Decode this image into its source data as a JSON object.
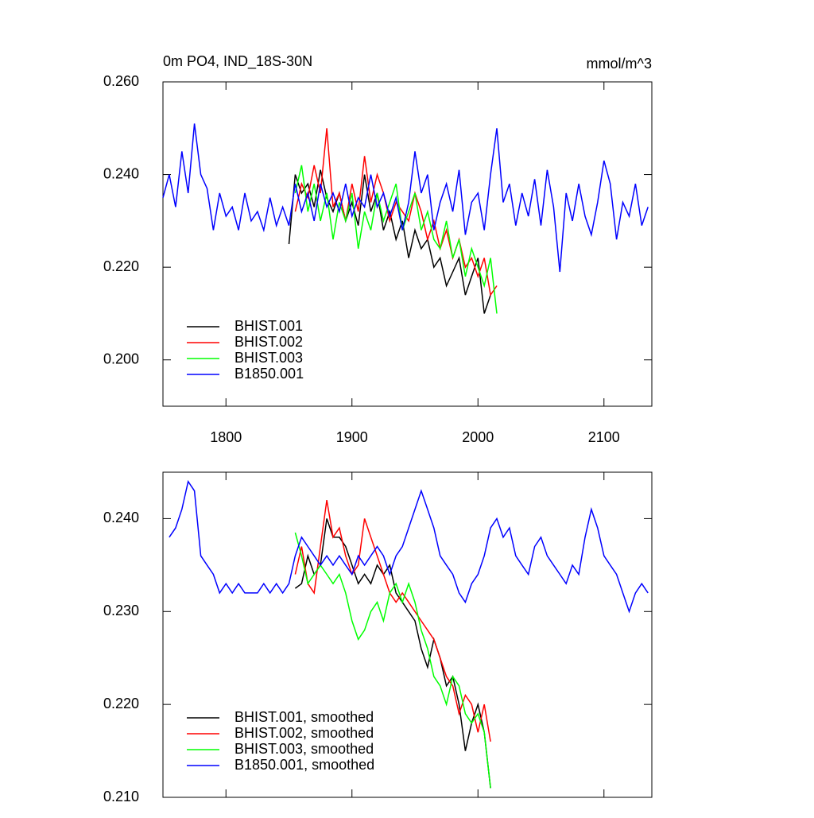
{
  "chart_data": [
    {
      "type": "line",
      "title": "0m PO4, IND_18S-30N",
      "units": "mmol/m^3",
      "xlim": [
        1750,
        2138
      ],
      "xticks": [
        1800,
        1900,
        2000,
        2100
      ],
      "show_xtick_labels": true,
      "ylim": [
        0.19,
        0.26
      ],
      "yticks": [
        {
          "value": 0.2,
          "label": "0.200"
        },
        {
          "value": 0.22,
          "label": "0.220"
        },
        {
          "value": 0.24,
          "label": "0.240"
        },
        {
          "value": 0.26,
          "label": "0.260"
        }
      ],
      "legend": "lower left",
      "series": [
        {
          "name": "BHIST.001",
          "color": "#000000",
          "x": [
            1850,
            1855,
            1860,
            1865,
            1870,
            1875,
            1880,
            1885,
            1890,
            1895,
            1900,
            1905,
            1910,
            1915,
            1920,
            1925,
            1930,
            1935,
            1940,
            1945,
            1950,
            1955,
            1960,
            1965,
            1970,
            1975,
            1980,
            1985,
            1990,
            1995,
            2000,
            2005,
            2010
          ],
          "values": [
            0.225,
            0.24,
            0.236,
            0.238,
            0.233,
            0.241,
            0.235,
            0.232,
            0.236,
            0.23,
            0.234,
            0.229,
            0.24,
            0.232,
            0.236,
            0.228,
            0.232,
            0.226,
            0.23,
            0.222,
            0.228,
            0.224,
            0.226,
            0.22,
            0.222,
            0.216,
            0.219,
            0.222,
            0.214,
            0.218,
            0.222,
            0.21,
            0.214
          ]
        },
        {
          "name": "BHIST.002",
          "color": "#ff0000",
          "x": [
            1855,
            1860,
            1865,
            1870,
            1875,
            1880,
            1885,
            1890,
            1895,
            1900,
            1905,
            1910,
            1915,
            1920,
            1925,
            1930,
            1935,
            1940,
            1945,
            1950,
            1955,
            1960,
            1965,
            1970,
            1975,
            1980,
            1985,
            1990,
            1995,
            2000,
            2005,
            2010,
            2015
          ],
          "values": [
            0.232,
            0.238,
            0.235,
            0.242,
            0.236,
            0.25,
            0.233,
            0.236,
            0.23,
            0.238,
            0.232,
            0.244,
            0.234,
            0.24,
            0.236,
            0.23,
            0.234,
            0.232,
            0.23,
            0.236,
            0.232,
            0.226,
            0.23,
            0.224,
            0.228,
            0.222,
            0.226,
            0.22,
            0.222,
            0.218,
            0.222,
            0.214,
            0.216
          ]
        },
        {
          "name": "BHIST.003",
          "color": "#00ff00",
          "x": [
            1855,
            1860,
            1865,
            1870,
            1875,
            1880,
            1885,
            1890,
            1895,
            1900,
            1905,
            1910,
            1915,
            1920,
            1925,
            1930,
            1935,
            1940,
            1945,
            1950,
            1955,
            1960,
            1965,
            1970,
            1975,
            1980,
            1985,
            1990,
            1995,
            2000,
            2005,
            2010,
            2015
          ],
          "values": [
            0.236,
            0.242,
            0.232,
            0.238,
            0.23,
            0.236,
            0.226,
            0.234,
            0.23,
            0.236,
            0.224,
            0.232,
            0.228,
            0.236,
            0.23,
            0.234,
            0.238,
            0.228,
            0.232,
            0.236,
            0.228,
            0.232,
            0.226,
            0.224,
            0.23,
            0.222,
            0.226,
            0.218,
            0.224,
            0.22,
            0.216,
            0.222,
            0.21
          ]
        },
        {
          "name": "B1850.001",
          "color": "#0000ff",
          "x": [
            1750,
            1755,
            1760,
            1765,
            1770,
            1775,
            1780,
            1785,
            1790,
            1795,
            1800,
            1805,
            1810,
            1815,
            1820,
            1825,
            1830,
            1835,
            1840,
            1845,
            1850,
            1855,
            1860,
            1865,
            1870,
            1875,
            1880,
            1885,
            1890,
            1895,
            1900,
            1905,
            1910,
            1915,
            1920,
            1925,
            1930,
            1935,
            1940,
            1945,
            1950,
            1955,
            1960,
            1965,
            1970,
            1975,
            1980,
            1985,
            1990,
            1995,
            2000,
            2005,
            2010,
            2015,
            2020,
            2025,
            2030,
            2035,
            2040,
            2045,
            2050,
            2055,
            2060,
            2065,
            2070,
            2075,
            2080,
            2085,
            2090,
            2095,
            2100,
            2105,
            2110,
            2115,
            2120,
            2125,
            2130,
            2135
          ],
          "values": [
            0.235,
            0.24,
            0.233,
            0.245,
            0.236,
            0.251,
            0.24,
            0.237,
            0.228,
            0.236,
            0.231,
            0.233,
            0.228,
            0.236,
            0.23,
            0.232,
            0.228,
            0.235,
            0.229,
            0.233,
            0.229,
            0.238,
            0.232,
            0.236,
            0.23,
            0.238,
            0.233,
            0.236,
            0.232,
            0.238,
            0.231,
            0.235,
            0.233,
            0.24,
            0.233,
            0.236,
            0.231,
            0.235,
            0.228,
            0.234,
            0.245,
            0.236,
            0.24,
            0.228,
            0.234,
            0.238,
            0.232,
            0.241,
            0.227,
            0.234,
            0.236,
            0.228,
            0.24,
            0.25,
            0.234,
            0.238,
            0.229,
            0.236,
            0.231,
            0.239,
            0.229,
            0.241,
            0.233,
            0.219,
            0.236,
            0.23,
            0.238,
            0.231,
            0.227,
            0.234,
            0.243,
            0.238,
            0.226,
            0.234,
            0.231,
            0.238,
            0.229,
            0.233
          ]
        }
      ]
    },
    {
      "type": "line",
      "xlim": [
        1750,
        2138
      ],
      "xticks": [
        1800,
        1900,
        2000,
        2100
      ],
      "show_xtick_labels": false,
      "ylim": [
        0.21,
        0.245
      ],
      "yticks": [
        {
          "value": 0.21,
          "label": "0.210"
        },
        {
          "value": 0.22,
          "label": "0.220"
        },
        {
          "value": 0.23,
          "label": "0.230"
        },
        {
          "value": 0.24,
          "label": "0.240"
        }
      ],
      "legend": "lower left",
      "series": [
        {
          "name": "BHIST.001, smoothed",
          "color": "#000000",
          "x": [
            1855,
            1860,
            1865,
            1870,
            1875,
            1880,
            1885,
            1890,
            1895,
            1900,
            1905,
            1910,
            1915,
            1920,
            1925,
            1930,
            1935,
            1940,
            1945,
            1950,
            1955,
            1960,
            1965,
            1970,
            1975,
            1980,
            1985,
            1990,
            1995,
            2000,
            2005,
            2010
          ],
          "values": [
            0.2325,
            0.233,
            0.236,
            0.234,
            0.235,
            0.24,
            0.238,
            0.238,
            0.237,
            0.235,
            0.233,
            0.234,
            0.233,
            0.235,
            0.234,
            0.235,
            0.232,
            0.231,
            0.23,
            0.229,
            0.226,
            0.224,
            0.227,
            0.225,
            0.222,
            0.223,
            0.22,
            0.215,
            0.218,
            0.22,
            0.217,
            0.211
          ]
        },
        {
          "name": "BHIST.002, smoothed",
          "color": "#ff0000",
          "x": [
            1855,
            1860,
            1865,
            1870,
            1875,
            1880,
            1885,
            1890,
            1895,
            1900,
            1905,
            1910,
            1915,
            1920,
            1925,
            1930,
            1935,
            1940,
            1945,
            1950,
            1955,
            1960,
            1965,
            1970,
            1975,
            1980,
            1985,
            1990,
            1995,
            2000,
            2005,
            2010
          ],
          "values": [
            0.234,
            0.237,
            0.233,
            0.232,
            0.237,
            0.242,
            0.238,
            0.239,
            0.236,
            0.234,
            0.235,
            0.24,
            0.238,
            0.236,
            0.234,
            0.232,
            0.231,
            0.232,
            0.231,
            0.23,
            0.229,
            0.228,
            0.227,
            0.225,
            0.223,
            0.222,
            0.219,
            0.221,
            0.22,
            0.217,
            0.22,
            0.216
          ]
        },
        {
          "name": "BHIST.003, smoothed",
          "color": "#00ff00",
          "x": [
            1855,
            1860,
            1865,
            1870,
            1875,
            1880,
            1885,
            1890,
            1895,
            1900,
            1905,
            1910,
            1915,
            1920,
            1925,
            1930,
            1935,
            1940,
            1945,
            1950,
            1955,
            1960,
            1965,
            1970,
            1975,
            1980,
            1985,
            1990,
            1995,
            2000,
            2005,
            2010
          ],
          "values": [
            0.2385,
            0.236,
            0.233,
            0.234,
            0.235,
            0.234,
            0.233,
            0.234,
            0.232,
            0.229,
            0.227,
            0.228,
            0.23,
            0.231,
            0.229,
            0.232,
            0.233,
            0.231,
            0.233,
            0.231,
            0.228,
            0.226,
            0.223,
            0.222,
            0.22,
            0.223,
            0.222,
            0.219,
            0.218,
            0.219,
            0.217,
            0.211
          ]
        },
        {
          "name": "B1850.001, smoothed",
          "color": "#0000ff",
          "x": [
            1755,
            1760,
            1765,
            1770,
            1775,
            1780,
            1785,
            1790,
            1795,
            1800,
            1805,
            1810,
            1815,
            1820,
            1825,
            1830,
            1835,
            1840,
            1845,
            1850,
            1855,
            1860,
            1865,
            1870,
            1875,
            1880,
            1885,
            1890,
            1895,
            1900,
            1905,
            1910,
            1915,
            1920,
            1925,
            1930,
            1935,
            1940,
            1945,
            1950,
            1955,
            1960,
            1965,
            1970,
            1975,
            1980,
            1985,
            1990,
            1995,
            2000,
            2005,
            2010,
            2015,
            2020,
            2025,
            2030,
            2035,
            2040,
            2045,
            2050,
            2055,
            2060,
            2065,
            2070,
            2075,
            2080,
            2085,
            2090,
            2095,
            2100,
            2105,
            2110,
            2115,
            2120,
            2125,
            2130,
            2135
          ],
          "values": [
            0.238,
            0.239,
            0.241,
            0.244,
            0.243,
            0.236,
            0.235,
            0.234,
            0.232,
            0.233,
            0.232,
            0.233,
            0.232,
            0.232,
            0.232,
            0.233,
            0.232,
            0.233,
            0.232,
            0.233,
            0.236,
            0.238,
            0.237,
            0.236,
            0.235,
            0.236,
            0.235,
            0.236,
            0.235,
            0.234,
            0.236,
            0.235,
            0.236,
            0.237,
            0.236,
            0.234,
            0.236,
            0.237,
            0.239,
            0.241,
            0.243,
            0.241,
            0.239,
            0.236,
            0.235,
            0.234,
            0.232,
            0.231,
            0.233,
            0.234,
            0.236,
            0.239,
            0.24,
            0.238,
            0.239,
            0.236,
            0.235,
            0.234,
            0.237,
            0.238,
            0.236,
            0.235,
            0.234,
            0.233,
            0.235,
            0.234,
            0.238,
            0.241,
            0.239,
            0.236,
            0.235,
            0.234,
            0.232,
            0.23,
            0.232,
            0.233,
            0.232
          ]
        }
      ]
    }
  ]
}
